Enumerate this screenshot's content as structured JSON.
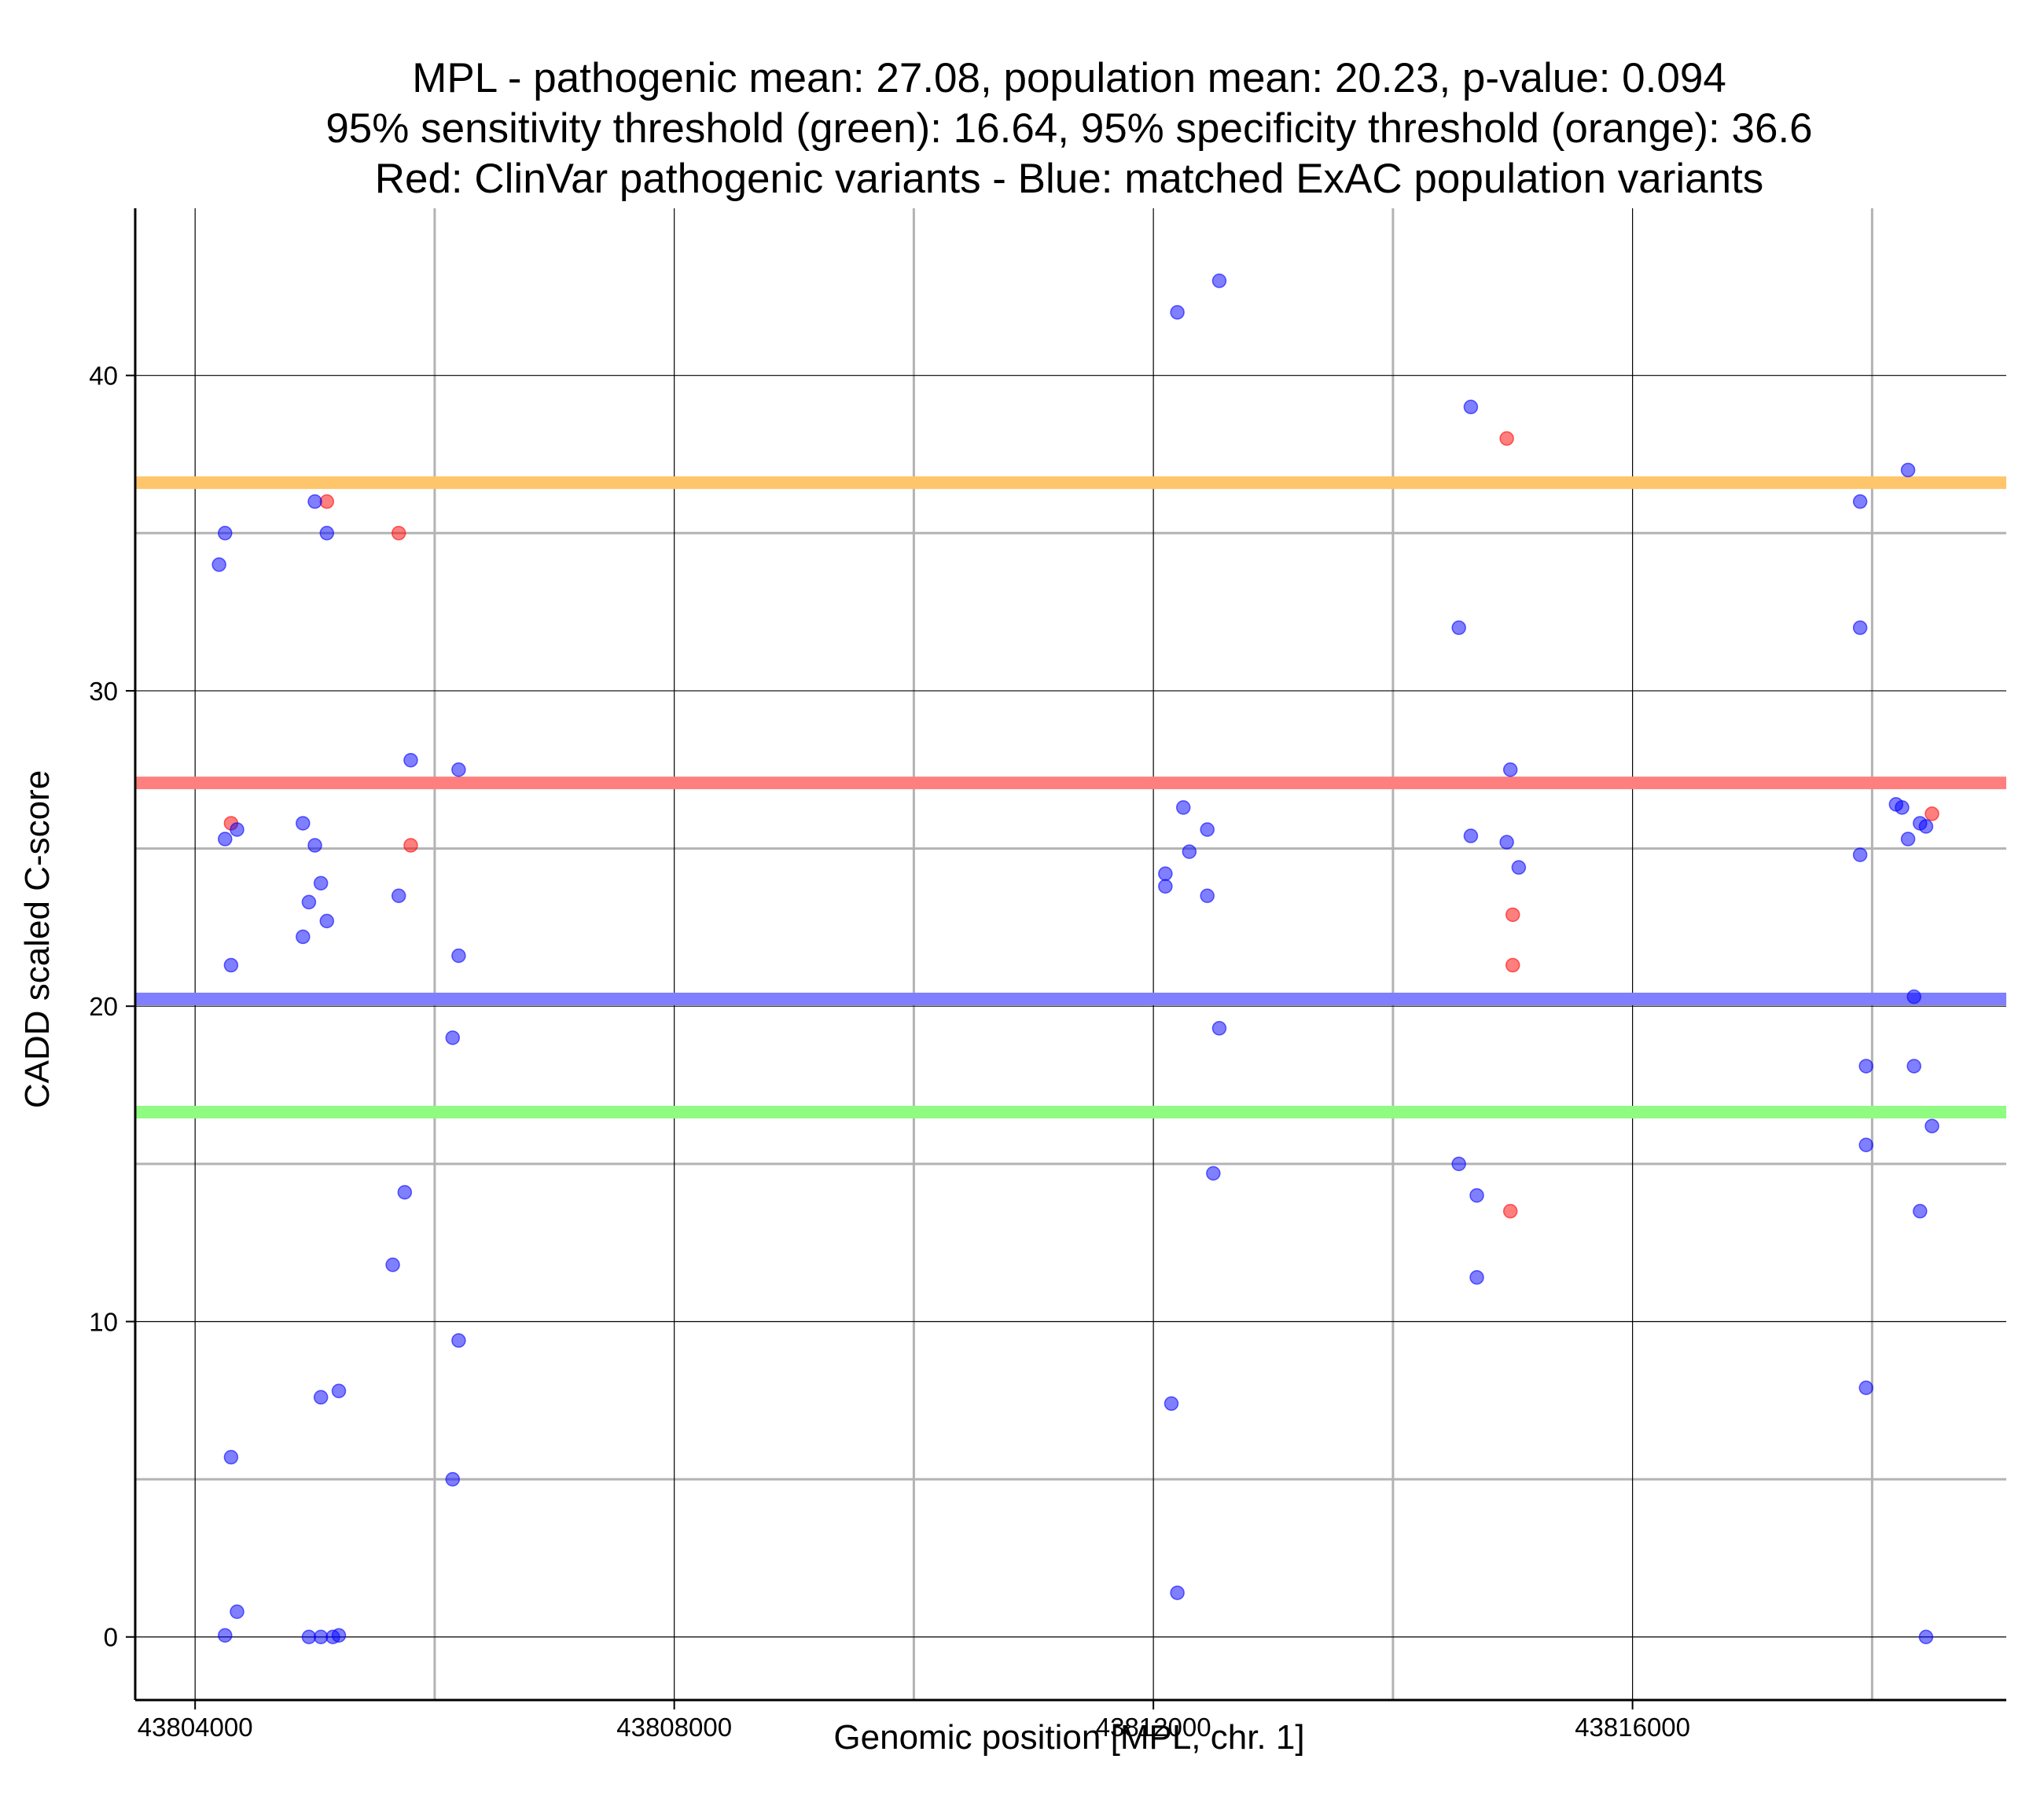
{
  "chart_data": {
    "type": "scatter",
    "title": [
      "MPL - pathogenic mean: 27.08, population mean: 20.23, p-value: 0.094",
      "95% sensitivity threshold (green): 16.64, 95% specificity threshold (orange): 36.6",
      "Red: ClinVar pathogenic variants - Blue: matched ExAC population variants"
    ],
    "xlabel": "Genomic position [MPL, chr. 1]",
    "ylabel": "CADD scaled C-score",
    "xlim": [
      43803500,
      43819120
    ],
    "ylim": [
      -2,
      45.3
    ],
    "x_ticks": [
      43804000,
      43808000,
      43812000,
      43816000
    ],
    "x_tick_labels": [
      "43804000",
      "43808000",
      "43812000",
      "43816000"
    ],
    "x_minor_grid": [
      43806000,
      43810000,
      43814000,
      43818000
    ],
    "y_ticks": [
      0,
      10,
      20,
      30,
      40
    ],
    "y_tick_labels": [
      "0",
      "10",
      "20",
      "30",
      "40"
    ],
    "y_minor_grid": [
      5,
      15,
      25,
      35
    ],
    "thresholds": [
      {
        "name": "specificity",
        "value": 36.6,
        "color": "#ffc56b"
      },
      {
        "name": "pathogenic-mean",
        "value": 27.08,
        "color": "#ff7f7f"
      },
      {
        "name": "population-mean",
        "value": 20.23,
        "color": "#7f7fff"
      },
      {
        "name": "sensitivity",
        "value": 16.64,
        "color": "#8ffb80"
      }
    ],
    "series": [
      {
        "name": "ClinVar pathogenic variants",
        "color": "#ff0000",
        "points": [
          [
            43805100,
            36.0
          ],
          [
            43805700,
            35.0
          ],
          [
            43814950,
            38.0
          ],
          [
            43804300,
            25.8
          ],
          [
            43805800,
            25.1
          ],
          [
            43818500,
            26.1
          ],
          [
            43815000,
            22.9
          ],
          [
            43815000,
            21.3
          ],
          [
            43814980,
            13.5
          ]
        ]
      },
      {
        "name": "matched ExAC population variants",
        "color": "#0000ff",
        "points": [
          [
            43812200,
            42.0
          ],
          [
            43812550,
            43.0
          ],
          [
            43814650,
            39.0
          ],
          [
            43818300,
            37.0
          ],
          [
            43805000,
            36.0
          ],
          [
            43817900,
            36.0
          ],
          [
            43804250,
            35.0
          ],
          [
            43805100,
            35.0
          ],
          [
            43804200,
            34.0
          ],
          [
            43814550,
            32.0
          ],
          [
            43817900,
            32.0
          ],
          [
            43805800,
            27.8
          ],
          [
            43806200,
            27.5
          ],
          [
            43814980,
            27.5
          ],
          [
            43818200,
            26.4
          ],
          [
            43818250,
            26.3
          ],
          [
            43812250,
            26.3
          ],
          [
            43804900,
            25.8
          ],
          [
            43818400,
            25.8
          ],
          [
            43818450,
            25.7
          ],
          [
            43804350,
            25.6
          ],
          [
            43812450,
            25.6
          ],
          [
            43814650,
            25.4
          ],
          [
            43804250,
            25.3
          ],
          [
            43818300,
            25.3
          ],
          [
            43814950,
            25.2
          ],
          [
            43805000,
            25.1
          ],
          [
            43812300,
            24.9
          ],
          [
            43817900,
            24.8
          ],
          [
            43815050,
            24.4
          ],
          [
            43812100,
            24.2
          ],
          [
            43805050,
            23.9
          ],
          [
            43812100,
            23.8
          ],
          [
            43805700,
            23.5
          ],
          [
            43812450,
            23.5
          ],
          [
            43804950,
            23.3
          ],
          [
            43805100,
            22.7
          ],
          [
            43804900,
            22.2
          ],
          [
            43806200,
            21.6
          ],
          [
            43804300,
            21.3
          ],
          [
            43818350,
            20.3
          ],
          [
            43812550,
            19.3
          ],
          [
            43806150,
            19.0
          ],
          [
            43817950,
            18.1
          ],
          [
            43818350,
            18.1
          ],
          [
            43818500,
            16.2
          ],
          [
            43817950,
            15.6
          ],
          [
            43814550,
            15.0
          ],
          [
            43812500,
            14.7
          ],
          [
            43805750,
            14.1
          ],
          [
            43814700,
            14.0
          ],
          [
            43818400,
            13.5
          ],
          [
            43805650,
            11.8
          ],
          [
            43814700,
            11.4
          ],
          [
            43806200,
            9.4
          ],
          [
            43817950,
            7.9
          ],
          [
            43805200,
            7.8
          ],
          [
            43805050,
            7.6
          ],
          [
            43812150,
            7.4
          ],
          [
            43804300,
            5.7
          ],
          [
            43806150,
            5.0
          ],
          [
            43812200,
            1.4
          ],
          [
            43804350,
            0.8
          ],
          [
            43804250,
            0.05
          ],
          [
            43804950,
            0.0
          ],
          [
            43805050,
            0.0
          ],
          [
            43805150,
            0.0
          ],
          [
            43805200,
            0.05
          ],
          [
            43818450,
            0.0
          ]
        ]
      }
    ]
  }
}
